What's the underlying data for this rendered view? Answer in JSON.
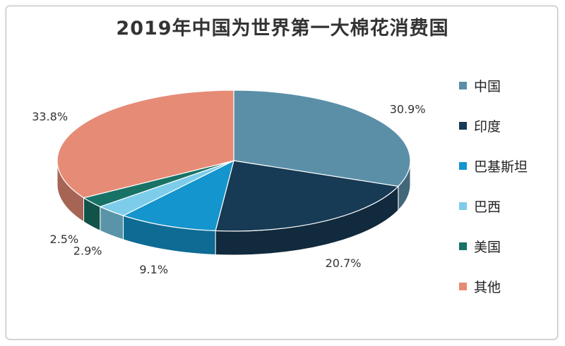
{
  "chart_data": {
    "type": "pie",
    "title": "2019年中国为世界第一大棉花消费国",
    "series": [
      {
        "name": "中国",
        "value": 30.9,
        "label": "30.9%",
        "color": "#5b8fa8"
      },
      {
        "name": "印度",
        "value": 20.7,
        "label": "20.7%",
        "color": "#173a55"
      },
      {
        "name": "巴基斯坦",
        "value": 9.1,
        "label": "9.1%",
        "color": "#1495cd"
      },
      {
        "name": "巴西",
        "value": 2.9,
        "label": "2.9%",
        "color": "#7dcdea"
      },
      {
        "name": "美国",
        "value": 2.5,
        "label": "2.5%",
        "color": "#187366"
      },
      {
        "name": "其他",
        "value": 33.8,
        "label": "33.8%",
        "color": "#e68b76"
      }
    ],
    "legend_position": "right",
    "style": "3d-pie"
  }
}
